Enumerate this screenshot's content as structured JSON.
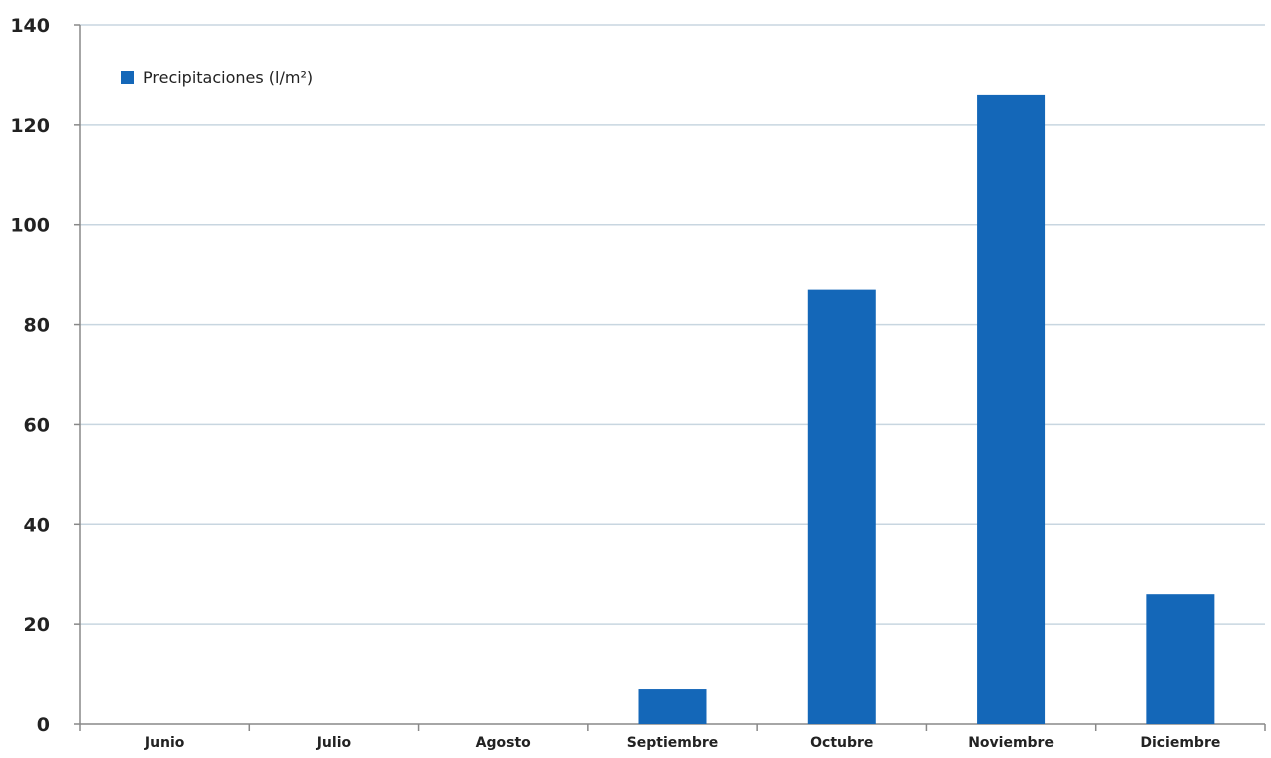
{
  "chart_data": {
    "type": "bar",
    "categories": [
      "Junio",
      "Julio",
      "Agosto",
      "Septiembre",
      "Octubre",
      "Noviembre",
      "Diciembre"
    ],
    "series": [
      {
        "name": "Precipitaciones (l/m²)",
        "values": [
          0,
          0,
          0,
          7,
          87,
          126,
          26
        ],
        "color": "#1467b8"
      }
    ],
    "yticks": [
      "0",
      "20",
      "40",
      "60",
      "80",
      "100",
      "120",
      "140"
    ],
    "ylim": [
      0,
      140
    ],
    "ytick_step": 20,
    "grid": true,
    "legend_position": "top-left",
    "colors": {
      "bar": "#1467b8",
      "gridline": "#c8d6e0",
      "axis": "#888888"
    }
  }
}
